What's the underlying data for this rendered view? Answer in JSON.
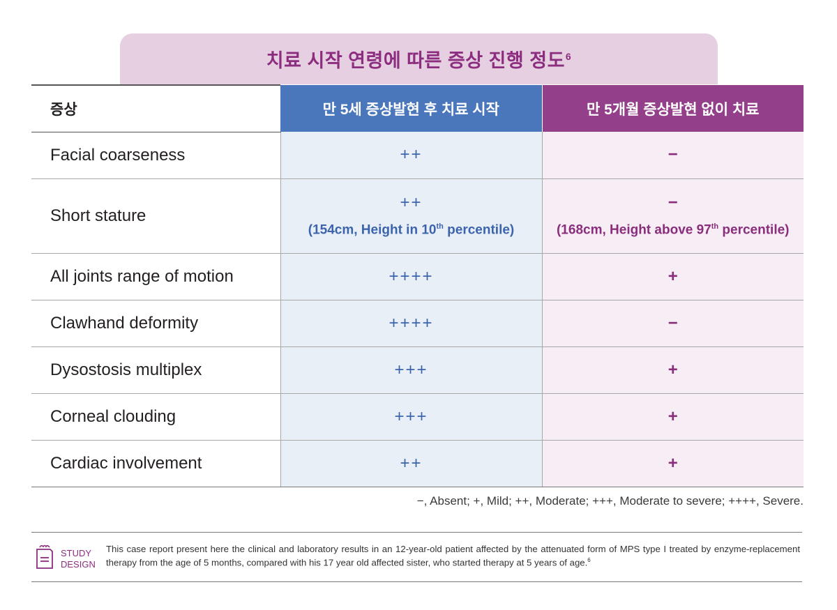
{
  "title": {
    "text": "치료 시작 연령에 따른 증상 진행 정도",
    "ref": "6"
  },
  "table": {
    "headers": {
      "symptom": "증상",
      "col_a": "만 5세 증상발현 후 치료 시작",
      "col_b": "만 5개월 증상발현 없이 치료"
    },
    "rows": [
      {
        "symptom": "Facial coarseness",
        "a": "++",
        "b": "−"
      },
      {
        "symptom": "Short stature",
        "a": "++",
        "b": "−",
        "a_note": {
          "pre": "(154cm, Height in 10",
          "sup": "th",
          "post": " percentile)"
        },
        "b_note": {
          "pre": "(168cm, Height above 97",
          "sup": "th",
          "post": " percentile)"
        }
      },
      {
        "symptom": "All joints range of motion",
        "a": "++++",
        "b": "+"
      },
      {
        "symptom": "Clawhand deformity",
        "a": "++++",
        "b": "−"
      },
      {
        "symptom": "Dysostosis multiplex",
        "a": "+++",
        "b": "+"
      },
      {
        "symptom": "Corneal clouding",
        "a": "+++",
        "b": "+"
      },
      {
        "symptom": "Cardiac involvement",
        "a": "++",
        "b": "+"
      }
    ]
  },
  "legend": "−, Absent; +, Mild; ++, Moderate; +++, Moderate to severe; ++++, Severe.",
  "study": {
    "label_line1": "STUDY",
    "label_line2": "DESIGN",
    "text": "This case report present here the clinical and laboratory results in an 12-year-old patient affected by the attenuated form of MPS type I treated by enzyme-replacement therapy from the age of 5 months, compared with his 17 year old affected sister, who started therapy at 5 years of age.",
    "ref": "6",
    "icon": "document-icon"
  },
  "colors": {
    "accent_purple": "#8c2d7f",
    "header_blue": "#4a76bb",
    "header_purple": "#933f8a",
    "tab_bg": "#e5cfe1",
    "cell_blue_bg": "#e8eff7",
    "cell_purple_bg": "#f6eef4"
  }
}
